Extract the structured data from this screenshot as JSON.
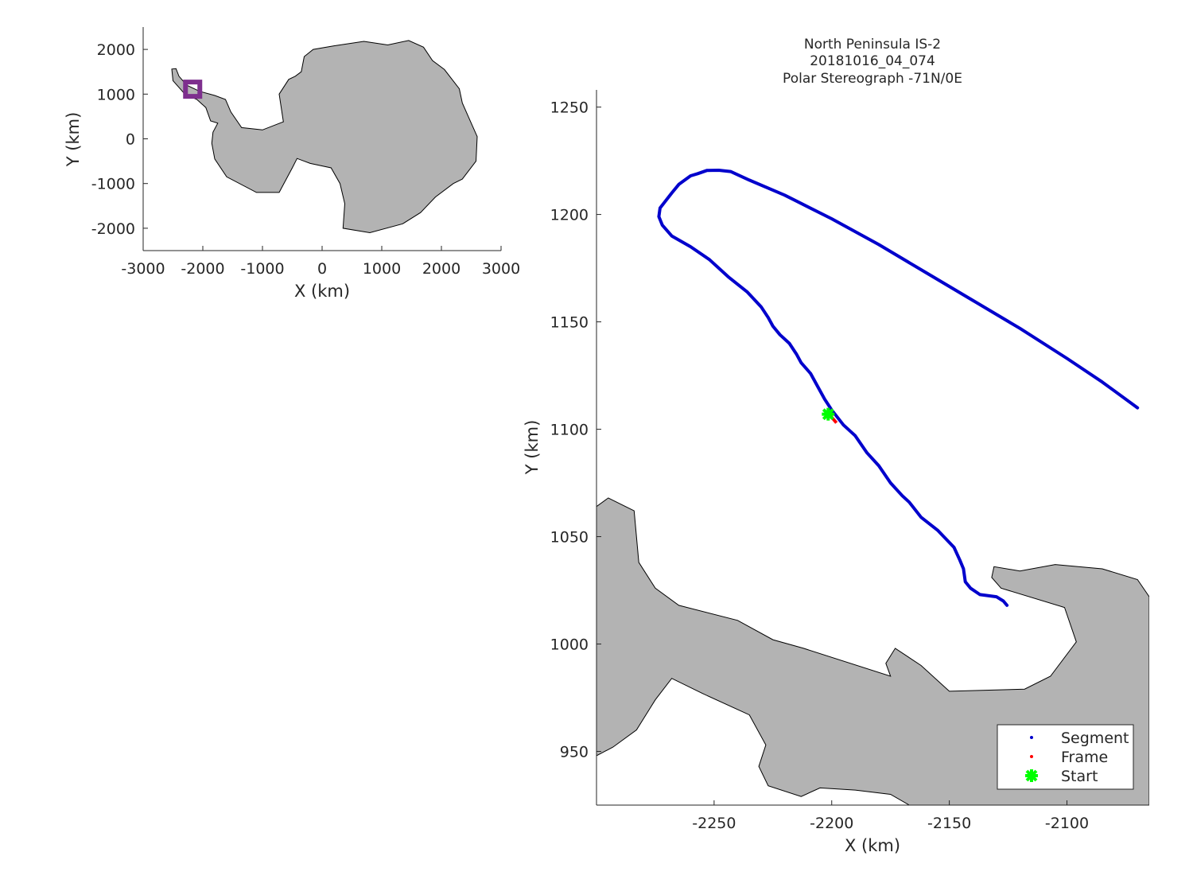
{
  "chart_data": [
    {
      "type": "map",
      "name": "overview",
      "xlabel": "X (km)",
      "ylabel": "Y (km)",
      "xlim": [
        -3000,
        3000
      ],
      "ylim": [
        -2500,
        2500
      ],
      "xticks": [
        -3000,
        -2000,
        -1000,
        0,
        1000,
        2000,
        3000
      ],
      "yticks": [
        -2000,
        -1000,
        0,
        1000,
        2000
      ],
      "xtick_labels": [
        "-3000",
        "-2000",
        "-1000",
        "0",
        "1000",
        "2000",
        "3000"
      ],
      "ytick_labels": [
        "-2000",
        "-1000",
        "0",
        "1000",
        "2000"
      ],
      "land_color": "#b3b3b3",
      "marker_color": "#7e2f8e",
      "marker_center": [
        -2170,
        1110
      ],
      "landmass": [
        [
          -2450,
          1570
        ],
        [
          -2400,
          1400
        ],
        [
          -2270,
          1200
        ],
        [
          -2050,
          1060
        ],
        [
          -1800,
          970
        ],
        [
          -1620,
          880
        ],
        [
          -1530,
          600
        ],
        [
          -1350,
          250
        ],
        [
          -1000,
          200
        ],
        [
          -650,
          380
        ],
        [
          -720,
          1000
        ],
        [
          -560,
          1330
        ],
        [
          -450,
          1400
        ],
        [
          -350,
          1500
        ],
        [
          -300,
          1840
        ],
        [
          -150,
          2000
        ],
        [
          200,
          2080
        ],
        [
          700,
          2180
        ],
        [
          1100,
          2100
        ],
        [
          1450,
          2200
        ],
        [
          1700,
          2050
        ],
        [
          1850,
          1750
        ],
        [
          2050,
          1550
        ],
        [
          2300,
          1120
        ],
        [
          2350,
          800
        ],
        [
          2500,
          350
        ],
        [
          2600,
          50
        ],
        [
          2580,
          -500
        ],
        [
          2350,
          -900
        ],
        [
          2200,
          -1000
        ],
        [
          1900,
          -1300
        ],
        [
          1650,
          -1650
        ],
        [
          1350,
          -1900
        ],
        [
          800,
          -2100
        ],
        [
          350,
          -2000
        ],
        [
          380,
          -1450
        ],
        [
          300,
          -1000
        ],
        [
          150,
          -650
        ],
        [
          -200,
          -550
        ],
        [
          -420,
          -440
        ],
        [
          -500,
          -650
        ],
        [
          -720,
          -1200
        ],
        [
          -900,
          -1200
        ],
        [
          -1100,
          -1200
        ],
        [
          -1600,
          -850
        ],
        [
          -1800,
          -450
        ],
        [
          -1850,
          -100
        ],
        [
          -1830,
          150
        ],
        [
          -1750,
          350
        ],
        [
          -1870,
          400
        ],
        [
          -1950,
          700
        ],
        [
          -2100,
          880
        ],
        [
          -2300,
          1000
        ],
        [
          -2500,
          1300
        ],
        [
          -2520,
          1560
        ]
      ]
    },
    {
      "type": "map",
      "name": "detail",
      "title": [
        "North Peninsula IS-2",
        "20181016_04_074",
        "Polar Stereograph -71N/0E"
      ],
      "xlabel": "X (km)",
      "ylabel": "Y (km)",
      "xlim": [
        -2300,
        -2065
      ],
      "ylim": [
        925,
        1258
      ],
      "xticks": [
        -2250,
        -2200,
        -2150,
        -2100
      ],
      "yticks": [
        950,
        1000,
        1050,
        1100,
        1150,
        1200,
        1250
      ],
      "xtick_labels": [
        "-2250",
        "-2200",
        "-2150",
        "-2100"
      ],
      "ytick_labels": [
        "950",
        "1000",
        "1050",
        "1100",
        "1150",
        "1200",
        "1250"
      ],
      "land_color": "#b3b3b3",
      "series": [
        {
          "name": "Segment",
          "color": "#0000cc",
          "x": [
            -2125.5,
            -2127,
            -2130,
            -2137,
            -2141,
            -2143.2,
            -2144,
            -2145.5,
            -2148,
            -2155,
            -2162,
            -2167,
            -2170,
            -2175,
            -2180,
            -2185,
            -2190,
            -2195,
            -2200,
            -2203,
            -2206,
            -2209,
            -2213,
            -2215,
            -2218,
            -2220,
            -2222,
            -2225,
            -2227,
            -2230,
            -2236,
            -2244,
            -2252,
            -2260,
            -2268,
            -2272,
            -2273.5,
            -2273,
            -2268,
            -2265,
            -2260,
            -2257,
            -2253,
            -2248,
            -2243,
            -2235,
            -2220,
            -2200,
            -2180,
            -2160,
            -2140,
            -2120,
            -2100,
            -2085,
            -2070
          ],
          "y": [
            1018,
            1020,
            1022,
            1023,
            1026,
            1029,
            1035,
            1039,
            1045,
            1053,
            1059,
            1066,
            1069,
            1075,
            1083,
            1089,
            1097,
            1102,
            1109,
            1114,
            1120,
            1126,
            1131,
            1135,
            1140,
            1142,
            1144,
            1148,
            1152,
            1157,
            1164,
            1171,
            1179,
            1185,
            1190,
            1195,
            1199,
            1203,
            1210,
            1214,
            1218,
            1219,
            1220.5,
            1220.6,
            1220,
            1216,
            1209,
            1198,
            1186,
            1173,
            1160,
            1147,
            1133,
            1122,
            1110
          ]
        },
        {
          "name": "Frame",
          "color": "#ff0000",
          "x": [
            -2198,
            -2201.5
          ],
          "y": [
            1103,
            1107.5
          ]
        },
        {
          "name": "Start",
          "color": "#00ff00",
          "x": [
            -2201.5
          ],
          "y": [
            1107
          ]
        }
      ],
      "land_polygons": [
        [
          [
            -2300,
            1064
          ],
          [
            -2295,
            1068
          ],
          [
            -2284,
            1062
          ],
          [
            -2282,
            1038
          ],
          [
            -2275,
            1026
          ],
          [
            -2265,
            1018
          ],
          [
            -2240,
            1011
          ],
          [
            -2225,
            1002
          ],
          [
            -2212,
            998
          ],
          [
            -2175,
            985
          ],
          [
            -2177,
            991
          ],
          [
            -2173,
            998
          ],
          [
            -2162,
            990
          ],
          [
            -2150,
            978
          ],
          [
            -2118,
            979
          ],
          [
            -2107,
            985
          ],
          [
            -2096,
            1001
          ],
          [
            -2101,
            1017
          ],
          [
            -2128,
            1026
          ],
          [
            -2132,
            1031
          ],
          [
            -2131,
            1036
          ],
          [
            -2120,
            1034
          ],
          [
            -2105,
            1037
          ],
          [
            -2085,
            1035
          ],
          [
            -2070,
            1030
          ],
          [
            -2065,
            1022
          ],
          [
            -2065,
            925
          ],
          [
            -2167,
            925
          ],
          [
            -2175,
            930
          ],
          [
            -2190,
            932
          ],
          [
            -2205,
            933
          ],
          [
            -2213,
            929
          ],
          [
            -2227,
            934
          ],
          [
            -2231,
            943
          ],
          [
            -2228,
            953
          ],
          [
            -2235,
            967
          ],
          [
            -2255,
            977
          ],
          [
            -2268,
            984
          ],
          [
            -2275,
            974
          ],
          [
            -2283,
            960
          ],
          [
            -2293,
            952
          ],
          [
            -2300,
            948
          ]
        ]
      ],
      "legend": {
        "position": "bottom-right",
        "entries": [
          "Segment",
          "Frame",
          "Start"
        ]
      }
    }
  ]
}
